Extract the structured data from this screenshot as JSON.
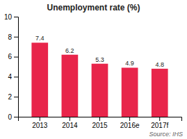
{
  "chart_data": {
    "type": "bar",
    "title": "Unemployment rate (%)",
    "categories": [
      "2013",
      "2014",
      "2015",
      "2016e",
      "2017f"
    ],
    "values": [
      7.4,
      6.2,
      5.3,
      4.9,
      4.8
    ],
    "color": "#e8254a",
    "ylim": [
      0,
      10
    ],
    "yticks": [
      0,
      2,
      4,
      6,
      8,
      10
    ],
    "grid": false,
    "data_labels": true,
    "annotations": [
      "Source: IHS"
    ]
  }
}
